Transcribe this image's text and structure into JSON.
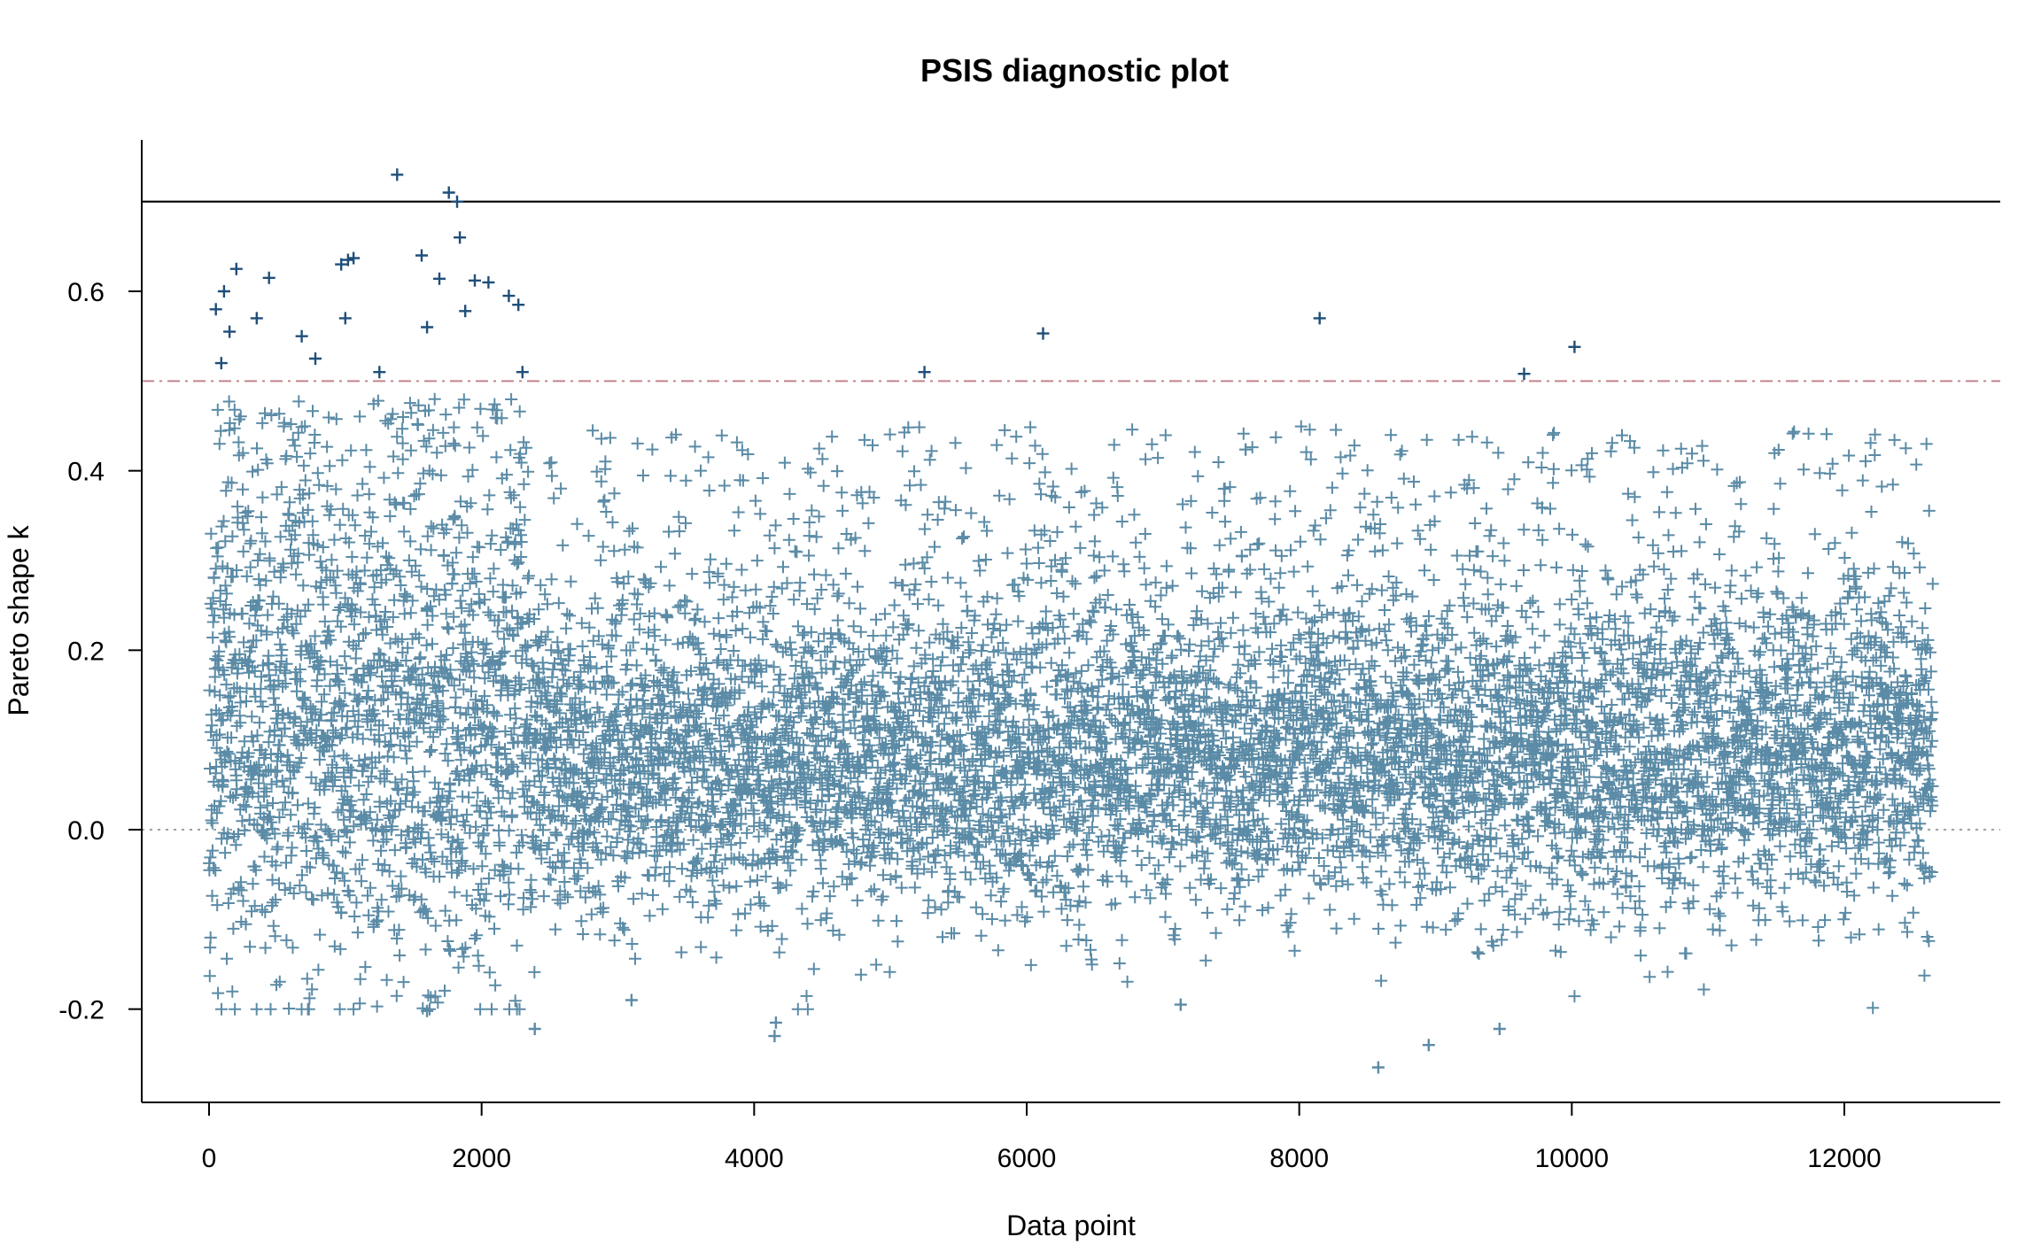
{
  "chart_data": {
    "type": "scatter",
    "title": "PSIS diagnostic plot",
    "xlabel": "Data point",
    "ylabel": "Pareto shape k",
    "xlim": [
      -600,
      13200
    ],
    "ylim": [
      -0.3,
      0.77
    ],
    "x_ticks": [
      0,
      2000,
      4000,
      6000,
      8000,
      10000,
      12000
    ],
    "x_tick_labels": [
      "0",
      "2000",
      "4000",
      "6000",
      "8000",
      "10000",
      "12000"
    ],
    "y_ticks": [
      -0.2,
      0.0,
      0.2,
      0.4,
      0.6
    ],
    "y_tick_labels": [
      "-0.2",
      "0.0",
      "0.2",
      "0.4",
      "0.6"
    ],
    "n_points": 12650,
    "marker": "+",
    "grid": false,
    "colors": {
      "points_low": "#5b8ba6",
      "points_high": "#1f4e7a",
      "threshold_07": "#000000",
      "threshold_05": "#c4858c",
      "zero_line": "#a0a0a0"
    },
    "reference_lines": [
      {
        "y": 0.7,
        "style": "solid"
      },
      {
        "y": 0.5,
        "style": "dashdot"
      },
      {
        "y": 0.0,
        "style": "dotted"
      }
    ],
    "distribution": {
      "typical_range": [
        -0.12,
        0.3
      ],
      "center": 0.08,
      "early_segment_x_end": 2350,
      "early_segment_upper": 0.5
    },
    "outliers": [
      {
        "x": 1380,
        "y": 0.73
      },
      {
        "x": 1760,
        "y": 0.71
      },
      {
        "x": 1820,
        "y": 0.7
      },
      {
        "x": 1840,
        "y": 0.66
      },
      {
        "x": 970,
        "y": 0.63
      },
      {
        "x": 1020,
        "y": 0.635
      },
      {
        "x": 1060,
        "y": 0.637
      },
      {
        "x": 1560,
        "y": 0.64
      },
      {
        "x": 1690,
        "y": 0.614
      },
      {
        "x": 1950,
        "y": 0.612
      },
      {
        "x": 2050,
        "y": 0.61
      },
      {
        "x": 2200,
        "y": 0.595
      },
      {
        "x": 2270,
        "y": 0.585
      },
      {
        "x": 50,
        "y": 0.58
      },
      {
        "x": 110,
        "y": 0.6
      },
      {
        "x": 200,
        "y": 0.625
      },
      {
        "x": 440,
        "y": 0.615
      },
      {
        "x": 350,
        "y": 0.57
      },
      {
        "x": 1000,
        "y": 0.57
      },
      {
        "x": 1880,
        "y": 0.578
      },
      {
        "x": 1600,
        "y": 0.56
      },
      {
        "x": 150,
        "y": 0.555
      },
      {
        "x": 680,
        "y": 0.55
      },
      {
        "x": 90,
        "y": 0.52
      },
      {
        "x": 780,
        "y": 0.525
      },
      {
        "x": 1250,
        "y": 0.51
      },
      {
        "x": 2300,
        "y": 0.51
      },
      {
        "x": 5250,
        "y": 0.51
      },
      {
        "x": 6120,
        "y": 0.553
      },
      {
        "x": 8150,
        "y": 0.57
      },
      {
        "x": 9650,
        "y": 0.508
      },
      {
        "x": 10020,
        "y": 0.538
      },
      {
        "x": 8580,
        "y": -0.265
      },
      {
        "x": 8950,
        "y": -0.24
      },
      {
        "x": 4150,
        "y": -0.23
      },
      {
        "x": 4160,
        "y": -0.215
      },
      {
        "x": 2390,
        "y": -0.222
      },
      {
        "x": 9470,
        "y": -0.222
      },
      {
        "x": 1600,
        "y": -0.202
      },
      {
        "x": 3100,
        "y": -0.19
      },
      {
        "x": 7130,
        "y": -0.195
      }
    ]
  }
}
